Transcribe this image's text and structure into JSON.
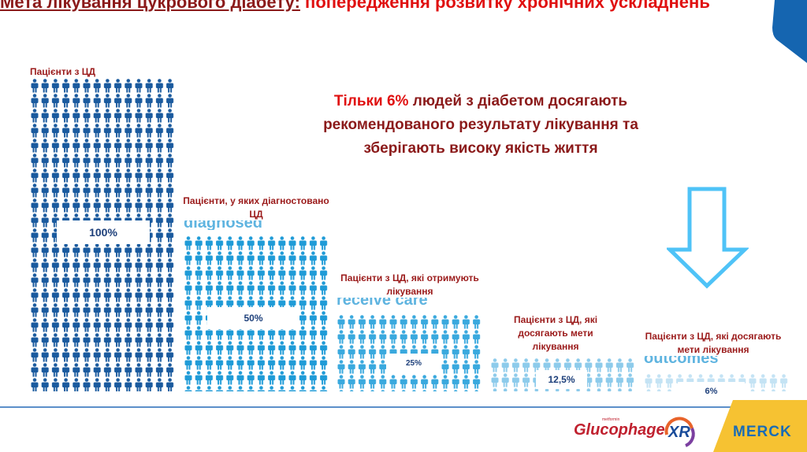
{
  "title": {
    "part1": "Мета лікування цукрового діабету:",
    "part2": " попередження розвитку хронічних ускладнень"
  },
  "headline": {
    "highlight": "Тільки 6%",
    "rest": " людей з діабетом досягають рекомендованого результату лікування та зберігають високу якість життя"
  },
  "groups": [
    {
      "label": "Пацієнти з ЦД",
      "percent": "100%",
      "color": "#1a5a9e",
      "ghost": ""
    },
    {
      "label": "Пацієнти, у яких діагностовано ЦД",
      "percent": "50%",
      "color": "#1f9bd7",
      "ghost": "diagnosed"
    },
    {
      "label": "Пацієнти з ЦД, які отримують лікування",
      "percent": "25%",
      "color": "#3aa9de",
      "ghost": "receive care"
    },
    {
      "label": "Пацієнти з ЦД, які досягають мети лікування",
      "percent": "12,5%",
      "color": "#8dcbeb",
      "ghost": ""
    },
    {
      "label": "Пацієнти з ЦД, які досягають мети лікування",
      "percent": "6%",
      "color": "#c4e3f4",
      "ghost": "outcomes"
    }
  ],
  "logos": {
    "product": "Glucophage",
    "product_sub": "metformin",
    "product_badge": "XR",
    "company": "MERCK"
  },
  "colors": {
    "accent_blue": "#1565b0",
    "merck_yellow": "#f6c232",
    "arrow": "#4fc3f7"
  }
}
